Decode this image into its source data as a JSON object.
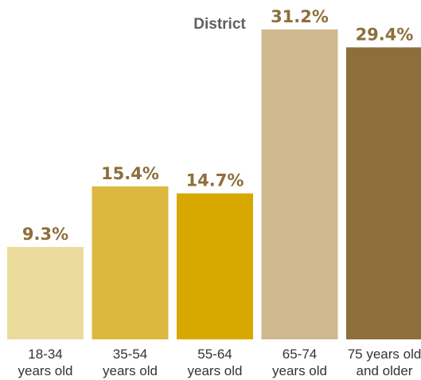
{
  "chart_data": {
    "type": "bar",
    "title": "District",
    "categories": [
      [
        "18-34",
        "years old"
      ],
      [
        "35-54",
        "years old"
      ],
      [
        "55-64",
        "years old"
      ],
      [
        "65-74",
        "years old"
      ],
      [
        "75 years old",
        "and older"
      ]
    ],
    "values": [
      9.3,
      15.4,
      14.7,
      31.2,
      29.4
    ],
    "value_labels": [
      "9.3%",
      "15.4%",
      "14.7%",
      "31.2%",
      "29.4%"
    ],
    "colors": [
      "#eada9c",
      "#ddb840",
      "#d8a800",
      "#d0b88e",
      "#8c6f3a"
    ],
    "label_color": "#8c6f3a",
    "ylim": [
      0,
      31.2
    ],
    "grid": false,
    "legend": "none"
  }
}
